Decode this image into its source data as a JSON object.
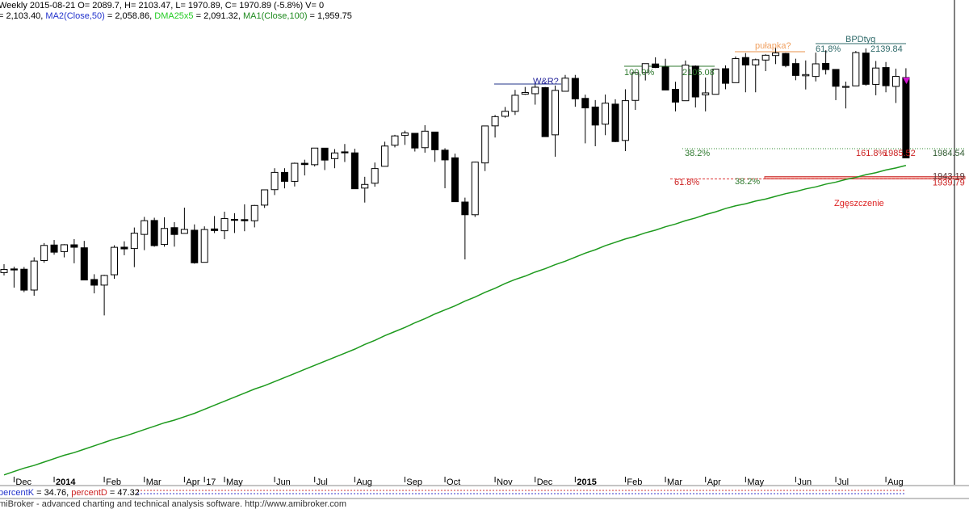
{
  "header": {
    "line1": "Weekly 2015-08-21 O= 2089.7, H= 2103.47, L= 1970.89, C= 1970.89 (-5.8%) V= 0",
    "line2": [
      "= 2,103.40, ",
      "MA2(Close,50)",
      " = 2,058.86, ",
      "DMA25x5",
      " = 2,091.32, ",
      " = 1,959.75"
    ]
  },
  "chart_data": {
    "type": "candlestick",
    "categories": [
      null,
      "Dec",
      null,
      null,
      null,
      "2014",
      null,
      null,
      null,
      null,
      "Feb",
      null,
      null,
      null,
      "Mar",
      null,
      null,
      null,
      "Apr",
      null,
      "17",
      null,
      "May",
      null,
      null,
      null,
      null,
      "Jun",
      null,
      null,
      null,
      "Jul",
      null,
      null,
      null,
      "Aug",
      null,
      null,
      null,
      null,
      "Sep",
      null,
      null,
      null,
      "Oct",
      null,
      null,
      null,
      null,
      "Nov",
      null,
      null,
      null,
      "Dec",
      null,
      null,
      null,
      "2015",
      null,
      null,
      null,
      null,
      "Feb",
      null,
      null,
      null,
      "Mar",
      null,
      null,
      null,
      "Apr",
      null,
      null,
      null,
      "May",
      null,
      null,
      null,
      null,
      "Jun",
      null,
      null,
      null,
      "Jul",
      null,
      null,
      null,
      null,
      "Aug",
      null,
      null
    ],
    "open": [
      1801.2,
      1806.6,
      1806.2,
      1775.4,
      1819.0,
      1842.0,
      1832.3,
      1842.3,
      1837.9,
      1791.0,
      1782.7,
      1798.0,
      1838.8,
      1836.8,
      1857.7,
      1878.3,
      1842.8,
      1867.7,
      1859.2,
      1863.9,
      1816.4,
      1865.8,
      1863.1,
      1880.0,
      1879.6,
      1877.9,
      1901.0,
      1923.9,
      1949.4,
      1936.2,
      1962.9,
      1960.8,
      1985.3,
      1969.8,
      1979.8,
      1978.3,
      1926.2,
      1933.4,
      1958.4,
      1989.6,
      2004.1,
      2007.2,
      1986.0,
      2009.1,
      1982.3,
      1971.0,
      1905.6,
      1886.8,
      1963.4,
      2018.2,
      2032.4,
      2039.7,
      2065.1,
      2065.8,
      2074.8,
      2005.0,
      2069.4,
      2088.5,
      2058.9,
      2046.1,
      2020.8,
      2050.4,
      1996.7,
      2055.9,
      2097.0,
      2109.8,
      2105.2,
      2072.3,
      2055.4,
      2106.6,
      2064.1,
      2064.9,
      2102.8,
      2082.1,
      2119.3,
      2108.4,
      2115.6,
      2122.3,
      2125.3,
      2110.4,
      2092.3,
      2091.3,
      2110.6,
      2101.7,
      2075.2,
      2077.4,
      2125.9,
      2079.6,
      2104.5,
      2076.6,
      2089.7
    ],
    "high": [
      1813.6,
      1810.0,
      1809.5,
      1823.8,
      1844.9,
      1849.4,
      1843.2,
      1850.8,
      1848.1,
      1798.8,
      1798.0,
      1841.6,
      1847.5,
      1867.9,
      1883.6,
      1882.4,
      1883.0,
      1875.9,
      1897.3,
      1872.5,
      1869.6,
      1884.9,
      1891.3,
      1889.1,
      1902.2,
      1901.3,
      1924.0,
      1955.6,
      1955.6,
      1963.9,
      1968.2,
      1985.6,
      1985.6,
      1983.9,
      1991.4,
      1984.4,
      1942.9,
      1964.0,
      1994.8,
      2005.0,
      2011.2,
      2007.2,
      2019.3,
      2009.1,
      1985.2,
      1977.1,
      1912.1,
      1965.3,
      2018.2,
      2034.3,
      2046.2,
      2071.5,
      2075.8,
      2079.5,
      2075.8,
      2077.9,
      2093.6,
      2093.6,
      2064.4,
      2056.4,
      2064.6,
      2057.6,
      2072.4,
      2097.0,
      2110.6,
      2119.6,
      2117.5,
      2083.5,
      2114.9,
      2107.6,
      2089.8,
      2102.6,
      2107.7,
      2120.9,
      2125.9,
      2117.7,
      2124.1,
      2134.7,
      2126.2,
      2117.6,
      2115.0,
      2126.6,
      2130.0,
      2101.7,
      2083.7,
      2129.0,
      2132.8,
      2114.2,
      2112.7,
      2102.9,
      2103.47
    ],
    "low": [
      1797.0,
      1779.0,
      1772.3,
      1767.0,
      1815.8,
      1827.7,
      1823.7,
      1815.0,
      1790.3,
      1770.5,
      1737.9,
      1792.0,
      1826.9,
      1809.3,
      1834.4,
      1839.5,
      1839.5,
      1839.6,
      1859.2,
      1814.4,
      1816.4,
      1859.7,
      1850.6,
      1859.8,
      1862.4,
      1868.1,
      1896.9,
      1915.9,
      1925.8,
      1928.6,
      1944.9,
      1958.2,
      1952.9,
      1955.6,
      1964.8,
      1925.2,
      1904.8,
      1928.3,
      1958.4,
      1986.4,
      1990.1,
      1980.3,
      1978.6,
      1965.0,
      1926.0,
      1906.1,
      1820.7,
      1883.6,
      1951.4,
      2001.0,
      2030.2,
      2034.4,
      2064.1,
      2049.6,
      2002.3,
      1972.6,
      2069.3,
      2046.5,
      1992.4,
      1988.1,
      2004.5,
      1994.2,
      1980.9,
      2041.9,
      2085.4,
      2103.8,
      2071.3,
      2039.7,
      2055.4,
      2045.5,
      2039.7,
      2064.9,
      2072.4,
      2082.1,
      2067.9,
      2067.9,
      2099.2,
      2109.6,
      2104.9,
      2085.7,
      2072.1,
      2084.0,
      2094.2,
      2056.3,
      2044.0,
      2077.4,
      2077.7,
      2063.5,
      2067.9,
      2052.1,
      1970.89
    ],
    "close": [
      1805.8,
      1805.1,
      1775.3,
      1818.3,
      1841.4,
      1831.4,
      1842.4,
      1838.7,
      1790.3,
      1782.6,
      1797.0,
      1838.6,
      1836.3,
      1859.5,
      1878.0,
      1841.1,
      1866.5,
      1857.6,
      1865.1,
      1815.7,
      1864.9,
      1863.4,
      1881.1,
      1878.5,
      1877.9,
      1900.5,
      1923.6,
      1949.4,
      1936.2,
      1962.9,
      1961.0,
      1985.4,
      1967.6,
      1978.2,
      1978.3,
      1925.2,
      1931.6,
      1955.1,
      1988.4,
      2003.4,
      2007.7,
      1985.5,
      2010.4,
      1982.9,
      1967.9,
      1906.1,
      1886.8,
      1964.6,
      2018.1,
      2031.9,
      2039.8,
      2063.5,
      2067.6,
      2075.4,
      2002.3,
      2070.7,
      2088.8,
      2058.2,
      2044.8,
      2019.4,
      2051.8,
      1995.0,
      2055.5,
      2097.0,
      2110.3,
      2104.5,
      2071.3,
      2053.4,
      2108.1,
      2061.0,
      2067.0,
      2102.1,
      2081.2,
      2117.7,
      2108.3,
      2116.1,
      2122.7,
      2126.1,
      2107.4,
      2092.8,
      2094.1,
      2110.0,
      2101.5,
      2076.8,
      2076.6,
      2126.6,
      2079.7,
      2103.8,
      2077.6,
      2091.5,
      1970.89
    ],
    "lines": [
      {
        "name": "MA1(Close,100)",
        "color": "#1e9a1e",
        "values": [
          1502,
          1507,
          1512,
          1516,
          1521,
          1526,
          1531,
          1535,
          1540,
          1545,
          1550,
          1555,
          1559,
          1564,
          1569,
          1574,
          1579,
          1583,
          1588,
          1593,
          1599,
          1605,
          1611,
          1617,
          1623,
          1629,
          1634,
          1640,
          1646,
          1652,
          1658,
          1664,
          1670,
          1676,
          1682,
          1688,
          1695,
          1701,
          1708,
          1714,
          1720,
          1727,
          1733,
          1740,
          1746,
          1752,
          1759,
          1765,
          1772,
          1778,
          1785,
          1791,
          1796,
          1802,
          1807,
          1813,
          1818,
          1824,
          1830,
          1835,
          1841,
          1846,
          1851,
          1855,
          1860,
          1864,
          1869,
          1873,
          1878,
          1882,
          1887,
          1891,
          1896,
          1900,
          1903,
          1907,
          1910,
          1914,
          1918,
          1921,
          1925,
          1928,
          1932,
          1935,
          1939,
          1942,
          1946,
          1949,
          1953,
          1956,
          1959.75
        ]
      }
    ],
    "levels": [
      2139.84,
      1984.54,
      1943.19,
      1939.79
    ],
    "annotations": [
      "W&R?",
      "pułapka?",
      "BPDtyg",
      "61,8%",
      "100,0%",
      "2105.08",
      "38.2%",
      "161.8%",
      "1985.52",
      "61.8%",
      "38.2%",
      "Zgęszczenie"
    ],
    "ylim": [
      1487.4,
      2204.4
    ]
  },
  "indicator": [
    "percentK",
    " = 34.76, ",
    "percentD",
    " = 47.32"
  ],
  "footer": "miBroker - advanced charting and technical analysis software. http://www.amibroker.com"
}
